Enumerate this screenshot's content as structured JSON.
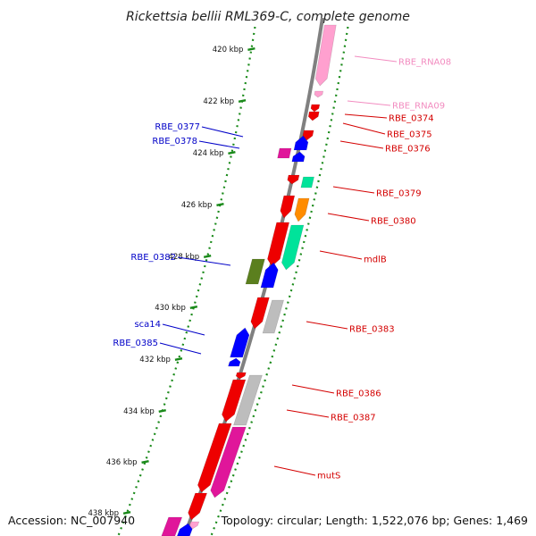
{
  "title": "Rickettsia bellii RML369-C, complete genome",
  "footer": {
    "accession": "Accession: NC_007940",
    "summary": "Topology: circular; Length: 1,522,076 bp; Genes: 1,469"
  },
  "colors": {
    "backbone": "#808080",
    "dotted_guides": "#1a8a1a",
    "left_labels": "#0000c8",
    "right_labels": "#d40000",
    "rna_labels": "#f28cc0"
  },
  "ticks": [
    {
      "label": "420 kbp"
    },
    {
      "label": "422 kbp"
    },
    {
      "label": "424 kbp"
    },
    {
      "label": "426 kbp"
    },
    {
      "label": "428 kbp"
    },
    {
      "label": "430 kbp"
    },
    {
      "label": "432 kbp"
    },
    {
      "label": "434 kbp"
    },
    {
      "label": "436 kbp"
    },
    {
      "label": "438 kbp"
    }
  ],
  "left_labels": [
    {
      "text": "RBE_0377"
    },
    {
      "text": "RBE_0378"
    },
    {
      "text": "RBE_0382"
    },
    {
      "text": "sca14"
    },
    {
      "text": "RBE_0385"
    }
  ],
  "right_labels": [
    {
      "text": "RBE_RNA08",
      "kind": "rna"
    },
    {
      "text": "RBE_RNA09",
      "kind": "rna"
    },
    {
      "text": "RBE_0374",
      "kind": "gene"
    },
    {
      "text": "RBE_0375",
      "kind": "gene"
    },
    {
      "text": "RBE_0376",
      "kind": "gene"
    },
    {
      "text": "RBE_0379",
      "kind": "gene"
    },
    {
      "text": "RBE_0380",
      "kind": "gene"
    },
    {
      "text": "mdlB",
      "kind": "gene"
    },
    {
      "text": "RBE_0383",
      "kind": "gene"
    },
    {
      "text": "RBE_0386",
      "kind": "gene"
    },
    {
      "text": "RBE_0387",
      "kind": "gene"
    },
    {
      "text": "mutS",
      "kind": "gene"
    }
  ]
}
